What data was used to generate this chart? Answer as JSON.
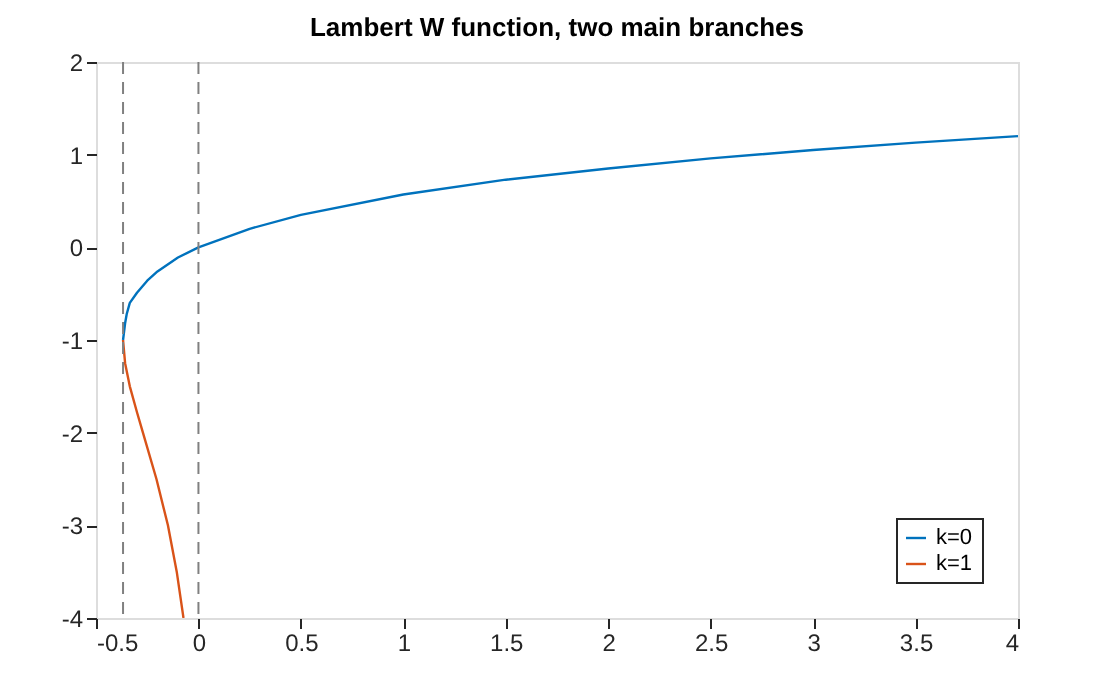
{
  "chart_data": {
    "type": "line",
    "title": "Lambert W function, two main branches",
    "series": [
      {
        "name": "k=0",
        "color": "#0072bd",
        "x": [
          -0.368,
          -0.358,
          -0.35,
          -0.335,
          -0.3,
          -0.25,
          -0.2,
          -0.1,
          0,
          0.25,
          0.5,
          1,
          1.5,
          2,
          2.5,
          3,
          3.5,
          4
        ],
        "values": [
          -1,
          -0.82,
          -0.72,
          -0.6,
          -0.49,
          -0.36,
          -0.26,
          -0.11,
          0,
          0.2,
          0.35,
          0.57,
          0.73,
          0.85,
          0.96,
          1.05,
          1.13,
          1.2
        ]
      },
      {
        "name": "k=1",
        "color": "#d95319",
        "x": [
          -0.368,
          -0.358,
          -0.335,
          -0.3,
          -0.271,
          -0.205,
          -0.149,
          -0.106,
          -0.073
        ],
        "values": [
          -1,
          -1.25,
          -1.5,
          -1.78,
          -2,
          -2.5,
          -3,
          -3.5,
          -4
        ]
      }
    ],
    "xlim": [
      -0.5,
      4
    ],
    "xticks": [
      -0.5,
      0,
      0.5,
      1,
      1.5,
      2,
      2.5,
      3,
      3.5,
      4
    ],
    "ylim": [
      -4,
      2
    ],
    "yticks": [
      -4,
      -3,
      -2,
      -1,
      0,
      1,
      2
    ],
    "ref_lines": [
      {
        "axis": "x",
        "value": -0.368,
        "color": "#808080",
        "line_style": "dashed"
      },
      {
        "axis": "x",
        "value": 0,
        "color": "#808080",
        "line_style": "dashed"
      }
    ],
    "legend": "bottom right",
    "grid": false,
    "line_style": "solid",
    "marker": "none"
  }
}
